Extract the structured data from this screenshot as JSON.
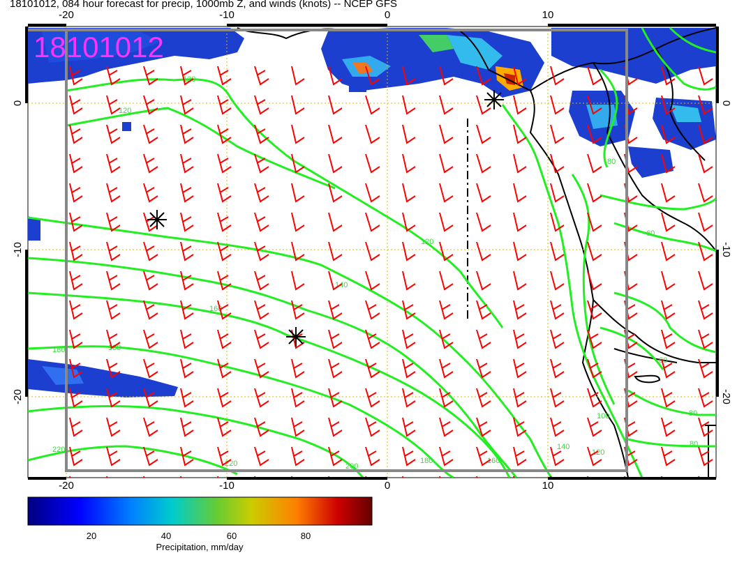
{
  "title": "18101012, 084 hour forecast for precip, 1000mb Z, and winds (knots) -- NCEP GFS",
  "stamp": "18101012",
  "axes": {
    "lon_ticks": [
      "-20",
      "-10",
      "0",
      "10"
    ],
    "lat_ticks": [
      "0",
      "-10",
      "-20"
    ]
  },
  "contour_labels": [
    {
      "text": "120"
    },
    {
      "text": "120"
    },
    {
      "text": "120"
    },
    {
      "text": "140"
    },
    {
      "text": "160"
    },
    {
      "text": "180"
    },
    {
      "text": "180"
    },
    {
      "text": "220"
    },
    {
      "text": "220"
    },
    {
      "text": "200"
    },
    {
      "text": "180"
    },
    {
      "text": "160"
    },
    {
      "text": "140"
    },
    {
      "text": "120"
    },
    {
      "text": "100"
    },
    {
      "text": "80"
    },
    {
      "text": "80"
    },
    {
      "text": "80"
    },
    {
      "text": "60"
    },
    {
      "text": "60"
    }
  ],
  "colorbar": {
    "ticks": [
      "20",
      "40",
      "60",
      "80"
    ],
    "label": "Precipitation, mm/day"
  },
  "colors": {
    "contour": "#22ee22",
    "barb": "#ff0000",
    "grid": "#ddbb00",
    "coast": "#000000",
    "frame": "#888888",
    "stamp": "#ff33ff"
  }
}
